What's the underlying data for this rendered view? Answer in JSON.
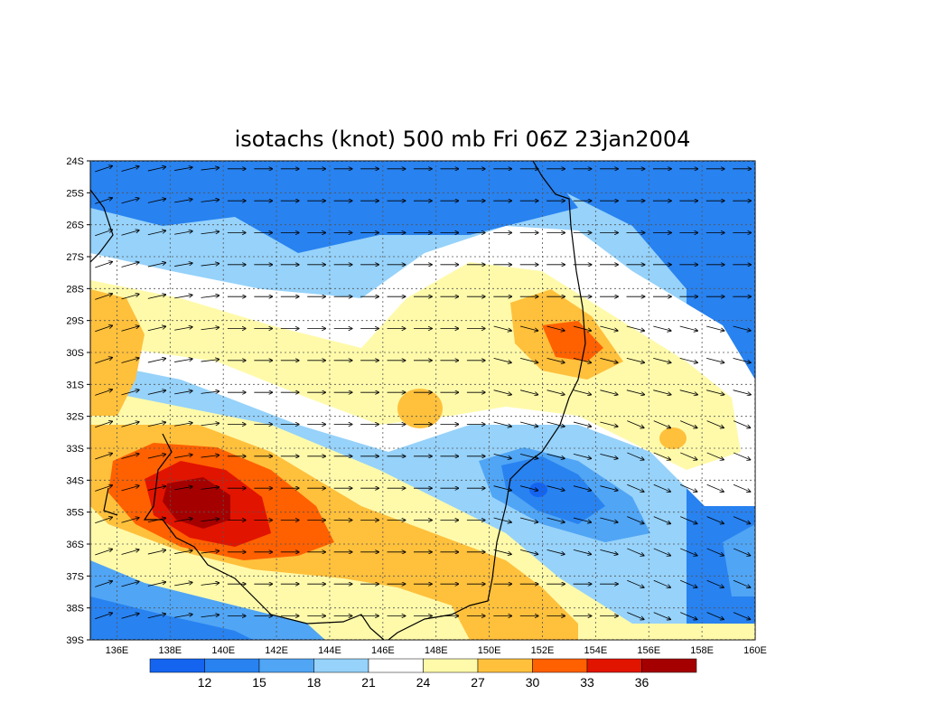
{
  "title": "isotachs (knot) 500 mb Fri 06Z 23jan2004",
  "map": {
    "lat_ticks": [
      "24S",
      "25S",
      "26S",
      "27S",
      "28S",
      "29S",
      "30S",
      "31S",
      "32S",
      "33S",
      "34S",
      "35S",
      "36S",
      "37S",
      "38S",
      "39S"
    ],
    "lon_ticks": [
      "136E",
      "138E",
      "140E",
      "142E",
      "144E",
      "146E",
      "148E",
      "150E",
      "152E",
      "154E",
      "156E",
      "158E",
      "160E"
    ],
    "lat_range": [
      -39,
      -24
    ],
    "lon_range": [
      135,
      160
    ],
    "grid": "dotted"
  },
  "colorbar": {
    "labels": [
      "12",
      "15",
      "18",
      "21",
      "24",
      "27",
      "30",
      "33",
      "36"
    ],
    "colors": [
      "#1464f0",
      "#2882f0",
      "#50a5f5",
      "#96d2fa",
      "#ffffff",
      "#fffaaa",
      "#ffc03c",
      "#ff6000",
      "#e11400",
      "#a50000"
    ]
  }
}
